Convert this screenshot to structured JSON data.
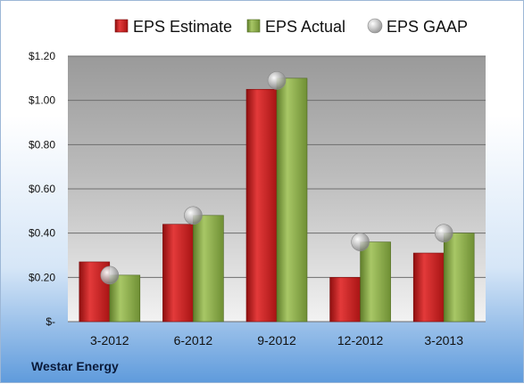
{
  "company": "Westar Energy",
  "chart_data": {
    "type": "bar",
    "categories": [
      "3-2012",
      "6-2012",
      "9-2012",
      "12-2012",
      "3-2013"
    ],
    "series": [
      {
        "name": "EPS Estimate",
        "values": [
          0.27,
          0.44,
          1.05,
          0.2,
          0.31
        ],
        "color": "#cc1f1f"
      },
      {
        "name": "EPS Actual",
        "values": [
          0.21,
          0.48,
          1.1,
          0.36,
          0.4
        ],
        "color": "#8bad4a"
      },
      {
        "name": "EPS GAAP",
        "values": [
          0.21,
          0.48,
          1.09,
          0.36,
          0.4
        ],
        "color": "#b0b0b0",
        "marker": "circle"
      }
    ],
    "yticks": [
      "$-",
      "$0.20",
      "$0.40",
      "$0.60",
      "$0.80",
      "$1.00",
      "$1.20"
    ],
    "ylim": [
      0,
      1.2
    ],
    "grid": true,
    "legend_position": "top"
  }
}
